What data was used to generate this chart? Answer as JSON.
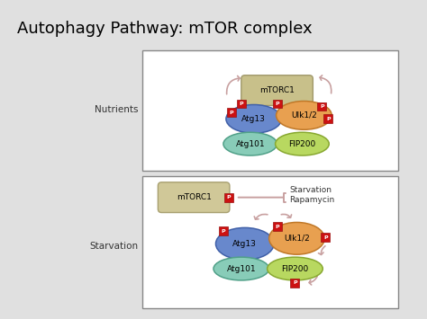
{
  "title": "Autophagy Pathway: mTOR complex",
  "title_fontsize": 13,
  "background_color": "#e0e0e0",
  "panel_bg": "#ffffff",
  "nutrients_label": "Nutrients",
  "starvation_label": "Starvation",
  "starvation_rapamycin": "Starvation\nRapamycin",
  "colors": {
    "mTORC1_fill": "#c8c08a",
    "mTORC1_edge": "#a0986a",
    "mTORC1s_fill": "#d0c898",
    "mTORC1s_edge": "#a8a070",
    "Atg13_fill": "#6888cc",
    "Atg13_edge": "#4060a8",
    "Ulk12_fill": "#e8a050",
    "Ulk12_edge": "#c07828",
    "Atg101_fill": "#88ccb8",
    "Atg101_edge": "#50a088",
    "FIP200_fill": "#b8d860",
    "FIP200_edge": "#88a830",
    "P_fill": "#cc1111",
    "P_edge": "#991111",
    "arrow_color": "#c8a0a0",
    "inhibit_color": "#c8a0a0",
    "box_edge": "#888888",
    "panel_bg": "#ffffff"
  }
}
